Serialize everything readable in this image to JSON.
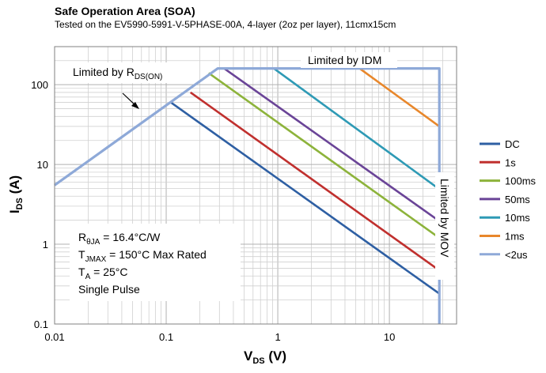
{
  "title": "Safe Operation Area (SOA)",
  "subtitle": "Tested on the EV5990-5991-V-5PHASE-00A, 4-layer (2oz per layer), 11cmx15cm",
  "chart_data": {
    "type": "line",
    "x_scale": "log",
    "y_scale": "log",
    "xlim": [
      0.01,
      40
    ],
    "ylim": [
      0.1,
      300
    ],
    "x_ticks": [
      0.01,
      0.1,
      1,
      10
    ],
    "x_tick_labels": [
      "0.01",
      "0.1",
      "1",
      "10"
    ],
    "y_ticks": [
      0.1,
      1,
      10,
      100
    ],
    "y_tick_labels": [
      "0.1",
      "1",
      "10",
      "100"
    ],
    "xlabel": {
      "main": "V",
      "sub": "DS",
      "unit": " (V)"
    },
    "ylabel": {
      "main": "I",
      "sub": "DS",
      "unit": " (A)"
    },
    "grid": true,
    "legend_position": "right",
    "series": [
      {
        "name": "DC",
        "color": "#2e5fa3",
        "points": [
          [
            0.11,
            60
          ],
          [
            28,
            0.24
          ]
        ]
      },
      {
        "name": "1s",
        "color": "#c0302e",
        "points": [
          [
            0.165,
            80
          ],
          [
            28,
            0.47
          ]
        ]
      },
      {
        "name": "100ms",
        "color": "#8db33b",
        "points": [
          [
            0.24,
            140
          ],
          [
            28,
            1.2
          ]
        ]
      },
      {
        "name": "50ms",
        "color": "#6a4497",
        "points": [
          [
            0.33,
            160
          ],
          [
            28,
            1.95
          ]
        ]
      },
      {
        "name": "10ms",
        "color": "#2e9ab5",
        "points": [
          [
            0.92,
            160
          ],
          [
            28,
            4.9
          ]
        ]
      },
      {
        "name": "1ms",
        "color": "#e8872b",
        "points": [
          [
            5.4,
            160
          ],
          [
            28,
            30
          ]
        ]
      },
      {
        "name": "<2us",
        "color": "#8ea9d8",
        "points": [
          [
            0.01,
            5.5
          ],
          [
            0.29,
            160
          ],
          [
            28,
            160
          ],
          [
            28,
            0.1
          ]
        ]
      }
    ],
    "annotations": {
      "rds_limit": {
        "text": "Limited by R",
        "sub": "DS(ON)"
      },
      "idm_limit": "Limited by IDM",
      "mov_limit": "Limited by MOV",
      "conditions": [
        {
          "text": "R",
          "sub": "θJA",
          "rest": " = 16.4°C/W"
        },
        {
          "text": "T",
          "sub": "JMAX",
          "rest": " = 150°C Max Rated"
        },
        {
          "text": "T",
          "sub": "A",
          "rest": " = 25°C"
        },
        {
          "text": "Single Pulse",
          "sub": "",
          "rest": ""
        }
      ]
    }
  }
}
